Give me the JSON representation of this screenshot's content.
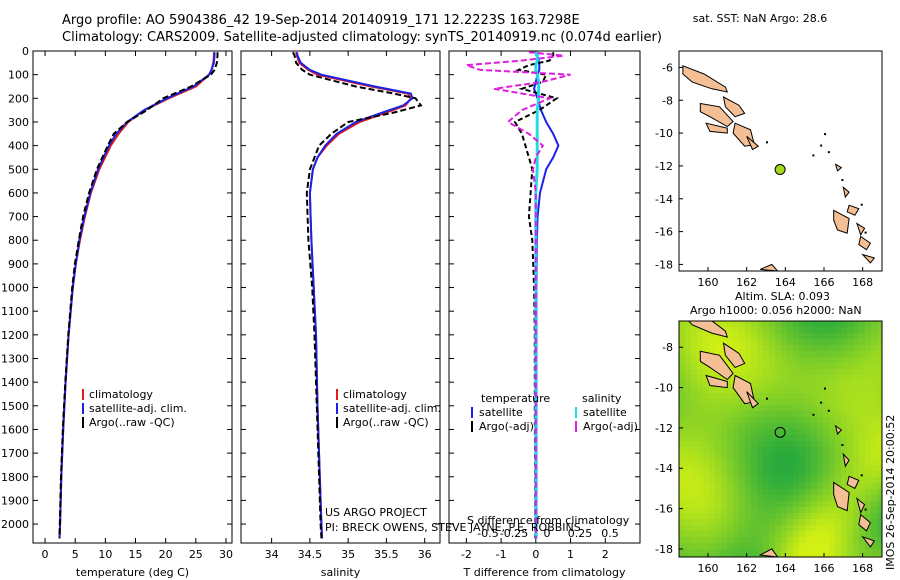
{
  "title_line1": "Argo profile: AO 5904386_42 19-Sep-2014 20140919_171 12.2223S 163.7298E",
  "title_line2": "Climatology: CARS2009. Satellite-adjusted climatology: synTS_20140919.nc (0.074d earlier)",
  "stamp": "IMOS 26-Sep-2014 20:00:52",
  "project_line1": "US ARGO PROJECT",
  "project_line2": "PI: BRECK OWENS, STEVE JAYNE, P.E. ROBBINS",
  "colors": {
    "red": "#e41a1c",
    "blue": "#1a22e6",
    "black": "#000000",
    "cyan": "#22dbe8",
    "magenta": "#e01ce0",
    "land": "#f4bf94"
  },
  "chart_data": [
    {
      "type": "line",
      "xlabel": "temperature (deg C)",
      "xlim": [
        -2,
        31
      ],
      "ylim": [
        0,
        2080
      ],
      "xticks": [
        0,
        5,
        10,
        15,
        20,
        25,
        30
      ],
      "yticks": [
        0,
        100,
        200,
        300,
        400,
        500,
        600,
        700,
        800,
        900,
        1000,
        1100,
        1200,
        1300,
        1400,
        1500,
        1600,
        1700,
        1800,
        1900,
        2000
      ],
      "legend": [
        "climatology",
        "satellite-adj. clim.",
        "Argo(..raw -QC)"
      ],
      "depth": [
        5,
        20,
        50,
        80,
        100,
        150,
        200,
        250,
        300,
        350,
        400,
        500,
        600,
        700,
        800,
        900,
        1000,
        1200,
        1400,
        1600,
        1800,
        2000,
        2060
      ],
      "series": [
        {
          "name": "climatology",
          "values": [
            28.0,
            28.0,
            27.9,
            27.6,
            27.2,
            25.0,
            20.5,
            16.5,
            13.8,
            12.2,
            10.9,
            9.0,
            7.6,
            6.6,
            5.8,
            5.1,
            4.6,
            3.9,
            3.4,
            3.0,
            2.7,
            2.5,
            2.4
          ]
        },
        {
          "name": "satellite-adj. clim.",
          "values": [
            28.1,
            28.1,
            28.0,
            27.6,
            27.2,
            24.6,
            20.2,
            16.4,
            13.6,
            11.8,
            10.6,
            8.8,
            7.5,
            6.5,
            5.7,
            5.1,
            4.6,
            3.9,
            3.4,
            3.0,
            2.7,
            2.5,
            2.4
          ]
        },
        {
          "name": "Argo(..raw -QC)",
          "values": [
            28.6,
            28.6,
            28.5,
            28.1,
            27.5,
            24.2,
            19.6,
            16.9,
            13.6,
            11.4,
            10.4,
            8.6,
            7.3,
            6.3,
            5.6,
            4.95,
            4.5,
            3.85,
            3.35,
            2.95,
            2.65,
            2.45,
            2.4
          ]
        }
      ]
    },
    {
      "type": "line",
      "xlabel": "salinity",
      "xlim": [
        33.6,
        36.2
      ],
      "ylim": [
        0,
        2080
      ],
      "xticks": [
        34,
        34.5,
        35,
        35.5,
        36
      ],
      "legend": [
        "climatology",
        "satellite-adj. clim.",
        "Argo(..raw -QC)"
      ],
      "depth": [
        5,
        20,
        50,
        80,
        100,
        150,
        180,
        200,
        230,
        260,
        300,
        350,
        400,
        450,
        500,
        600,
        700,
        800,
        1000,
        1200,
        1500,
        1800,
        2000,
        2060
      ],
      "series": [
        {
          "name": "climatology",
          "values": [
            34.32,
            34.33,
            34.36,
            34.48,
            34.6,
            35.3,
            35.78,
            35.82,
            35.75,
            35.5,
            35.15,
            34.88,
            34.72,
            34.6,
            34.54,
            34.5,
            34.51,
            34.52,
            34.55,
            34.58,
            34.6,
            34.63,
            34.65,
            34.66
          ]
        },
        {
          "name": "satellite-adj. clim.",
          "values": [
            34.33,
            34.34,
            34.38,
            34.5,
            34.65,
            35.35,
            35.82,
            35.84,
            35.72,
            35.45,
            35.1,
            34.85,
            34.7,
            34.6,
            34.54,
            34.5,
            34.51,
            34.52,
            34.55,
            34.58,
            34.6,
            34.63,
            34.65,
            34.66
          ]
        },
        {
          "name": "Argo(..raw -QC)",
          "values": [
            34.28,
            34.3,
            34.32,
            34.4,
            34.5,
            35.1,
            35.6,
            35.88,
            35.95,
            35.6,
            35.0,
            34.78,
            34.62,
            34.56,
            34.5,
            34.46,
            34.47,
            34.48,
            34.53,
            34.56,
            34.59,
            34.62,
            34.64,
            34.65
          ]
        }
      ]
    },
    {
      "type": "line",
      "xlabel": "T difference from climatology",
      "title": "S difference from climatology",
      "xlim": [
        -2.5,
        3
      ],
      "ylim": [
        0,
        2080
      ],
      "xticks": [
        -2,
        -1,
        0,
        1,
        2
      ],
      "secondary_ticks": [
        "-0.5",
        "-0.25",
        "0",
        "0.25",
        "0.5"
      ],
      "legend_headers": [
        "temperature",
        "salinity"
      ],
      "legend": [
        "satellite",
        "Argo(-adj)",
        "satellite",
        "Argo(-adj)"
      ],
      "depth": [
        5,
        20,
        40,
        60,
        80,
        100,
        130,
        160,
        200,
        250,
        300,
        350,
        400,
        450,
        500,
        600,
        700,
        800,
        1000,
        1200,
        1500,
        1800,
        2000,
        2060
      ],
      "series": [
        {
          "name": "T satellite",
          "values": [
            0.05,
            0.05,
            0.08,
            0.1,
            0.1,
            0.05,
            0.0,
            -0.05,
            0.05,
            0.15,
            0.3,
            0.5,
            0.65,
            0.5,
            0.3,
            0.12,
            0.05,
            0.03,
            0.02,
            0.02,
            0.02,
            0.02,
            0.02,
            0.02
          ]
        },
        {
          "name": "T Argo(-adj)",
          "values": [
            0.5,
            0.5,
            0.4,
            -0.2,
            -0.5,
            0.3,
            0.2,
            -0.4,
            0.6,
            0.1,
            -0.6,
            -0.4,
            -0.3,
            -0.2,
            -0.1,
            -0.15,
            -0.2,
            -0.1,
            -0.05,
            -0.03,
            -0.03,
            -0.02,
            -0.02,
            -0.02
          ]
        },
        {
          "name": "S satellite",
          "values": [
            0.0,
            0.01,
            0.01,
            0.0,
            0.0,
            0.01,
            0.02,
            0.02,
            0.02,
            0.01,
            0.01,
            0.01,
            0.01,
            0.01,
            0.01,
            0.0,
            0.0,
            0.0,
            0.0,
            0.0,
            0.0,
            0.0,
            0.0,
            0.0
          ]
        },
        {
          "name": "S Argo(-adj)",
          "values": [
            -0.05,
            0.2,
            -0.1,
            -0.5,
            -0.4,
            0.25,
            0.05,
            -0.3,
            0.1,
            -0.1,
            -0.2,
            -0.05,
            0.05,
            0.0,
            -0.02,
            0.0,
            0.0,
            0.0,
            0.0,
            0.0,
            0.0,
            0.0,
            0.0,
            0.0
          ]
        }
      ]
    },
    {
      "type": "scatter",
      "title": "sat. SST: NaN Argo: 28.6",
      "xlim": [
        158.5,
        169
      ],
      "ylim": [
        -18.4,
        -5
      ],
      "xticks": [
        160,
        162,
        164,
        166,
        168
      ],
      "yticks": [
        -6,
        -8,
        -10,
        -12,
        -14,
        -16,
        -18
      ],
      "point": {
        "lon": 163.73,
        "lat": -12.22
      }
    },
    {
      "type": "heatmap",
      "title_line1": "Altim. SLA: 0.093",
      "title_line2": "Argo h1000: 0.056 h2000: NaN",
      "xlim": [
        158.5,
        169
      ],
      "ylim": [
        -18.4,
        -6.7
      ],
      "xticks": [
        160,
        162,
        164,
        166,
        168
      ],
      "yticks": [
        -8,
        -10,
        -12,
        -14,
        -16,
        -18
      ],
      "point": {
        "lon": 163.73,
        "lat": -12.22
      }
    }
  ]
}
